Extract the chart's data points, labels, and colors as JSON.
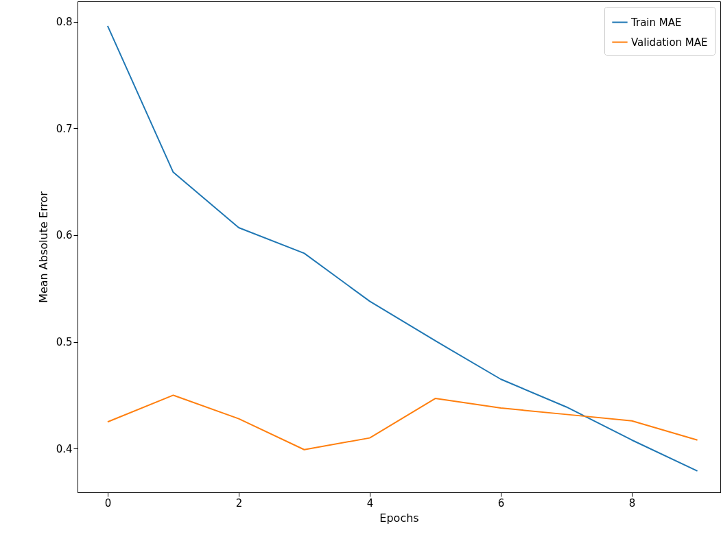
{
  "chart_data": {
    "type": "line",
    "xlabel": "Epochs",
    "ylabel": "Mean Absolute Error",
    "x": [
      0,
      1,
      2,
      3,
      4,
      5,
      6,
      7,
      8,
      9
    ],
    "series": [
      {
        "name": "Train MAE",
        "color": "#1f77b4",
        "values": [
          0.796,
          0.659,
          0.607,
          0.583,
          0.538,
          0.501,
          0.465,
          0.439,
          0.408,
          0.379
        ]
      },
      {
        "name": "Validation MAE",
        "color": "#ff7f0e",
        "values": [
          0.425,
          0.45,
          0.428,
          0.399,
          0.41,
          0.447,
          0.438,
          0.432,
          0.426,
          0.408
        ]
      }
    ],
    "xlim": [
      -0.46,
      9.35
    ],
    "xticks": [
      0,
      2,
      4,
      6,
      8
    ],
    "ylim": [
      0.359,
      0.819
    ],
    "yticks": [
      0.4,
      0.5,
      0.6,
      0.7,
      0.8
    ],
    "grid": false,
    "legend": "top right",
    "marker": "none",
    "line_style": "solid"
  }
}
